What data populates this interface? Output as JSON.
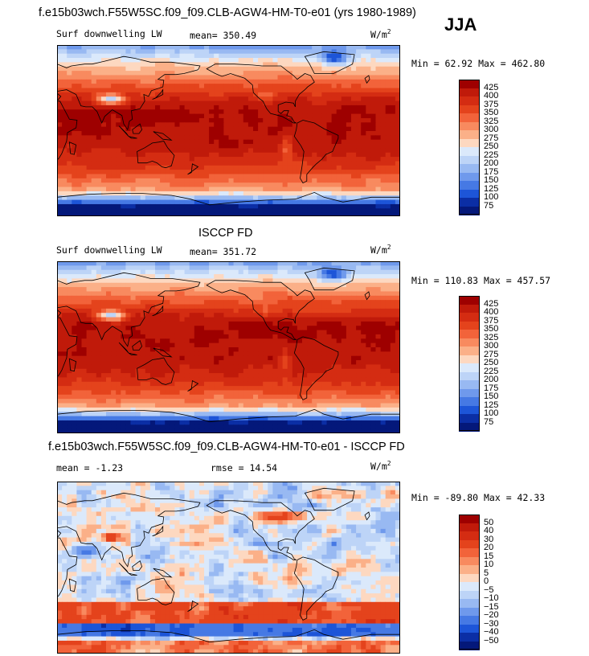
{
  "header": {
    "title": "f.e15b03wch.F55W5SC.f09_f09.CLB-AGW4-HM-T0-e01 (yrs 1980-1989)",
    "season": "JJA"
  },
  "panels": [
    {
      "id": "model",
      "variable": "Surf downwelling LW",
      "stat_text": "mean= 350.49",
      "units_base": "W/m",
      "units_exp": "2",
      "minmax_text": "Min = 62.92 Max = 462.80"
    },
    {
      "id": "obs",
      "heading": "ISCCP FD",
      "variable": "Surf downwelling LW",
      "stat_text": "mean= 351.72",
      "units_base": "W/m",
      "units_exp": "2",
      "minmax_text": "Min = 110.83 Max = 457.57"
    },
    {
      "id": "diff",
      "heading": "f.e15b03wch.F55W5SC.f09_f09.CLB-AGW4-HM-T0-e01 - ISCCP FD",
      "stat_text": "mean = -1.23",
      "rmse_text": "rmse = 14.54",
      "units_base": "W/m",
      "units_exp": "2",
      "minmax_text": "Min = -89.80 Max = 42.33"
    }
  ],
  "chart_data": [
    {
      "type": "heatmap",
      "title": "Surf downwelling LW",
      "units": "W/m2",
      "mean": 350.49,
      "min": 62.92,
      "max": 462.8,
      "colorbar_levels": [
        425,
        400,
        375,
        350,
        325,
        300,
        275,
        250,
        225,
        200,
        175,
        150,
        125,
        100,
        75
      ],
      "colorbar_colors": [
        "#9e0000",
        "#c01a0a",
        "#d42c12",
        "#e4431c",
        "#f2633a",
        "#f88a5f",
        "#fbb088",
        "#fdd8c0",
        "#dbe9fb",
        "#bdd4f7",
        "#98b9f2",
        "#6f99ec",
        "#4679e4",
        "#1d55d8",
        "#0b2ea5",
        "#04187a"
      ],
      "regime": "sw"
    },
    {
      "type": "heatmap",
      "title": "ISCCP FD",
      "units": "W/m2",
      "mean": 351.72,
      "min": 110.83,
      "max": 457.57,
      "colorbar_levels": [
        425,
        400,
        375,
        350,
        325,
        300,
        275,
        250,
        225,
        200,
        175,
        150,
        125,
        100,
        75
      ],
      "colorbar_colors": [
        "#9e0000",
        "#c01a0a",
        "#d42c12",
        "#e4431c",
        "#f2633a",
        "#f88a5f",
        "#fbb088",
        "#fdd8c0",
        "#dbe9fb",
        "#bdd4f7",
        "#98b9f2",
        "#6f99ec",
        "#4679e4",
        "#1d55d8",
        "#0b2ea5",
        "#04187a"
      ],
      "regime": "sw"
    },
    {
      "type": "heatmap",
      "title": "f.e15b03wch.F55W5SC.f09_f09.CLB-AGW4-HM-T0-e01 - ISCCP FD",
      "units": "W/m2",
      "mean": -1.23,
      "rmse": 14.54,
      "min": -89.8,
      "max": 42.33,
      "colorbar_levels": [
        50,
        40,
        30,
        20,
        15,
        10,
        5,
        0,
        -5,
        -10,
        -15,
        -20,
        -30,
        -40,
        -50
      ],
      "colorbar_colors": [
        "#9e0000",
        "#c01a0a",
        "#d42c12",
        "#e4431c",
        "#f2633a",
        "#f88a5f",
        "#fbb088",
        "#fdd8c0",
        "#dbe9fb",
        "#bdd4f7",
        "#98b9f2",
        "#6f99ec",
        "#4679e4",
        "#1d55d8",
        "#0b2ea5",
        "#04187a"
      ],
      "regime": "diff"
    }
  ]
}
